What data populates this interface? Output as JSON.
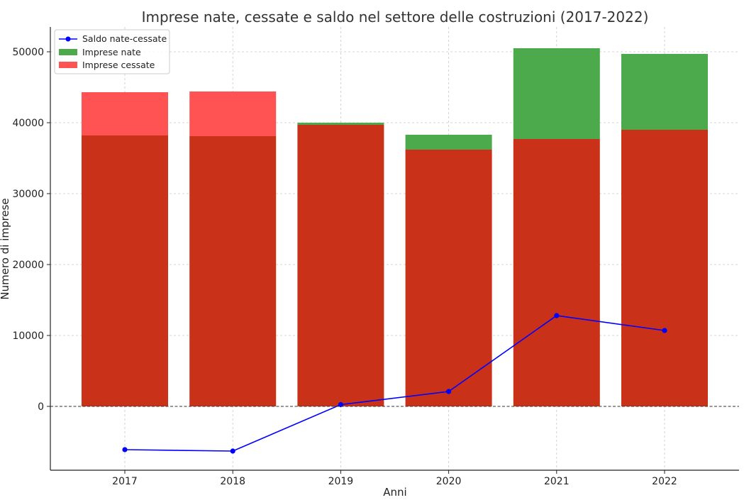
{
  "chart_data": {
    "type": "bar",
    "title": "Imprese nate, cessate e saldo nel settore delle costruzioni (2017-2022)",
    "xlabel": "Anni",
    "ylabel": "Numero di imprese",
    "categories": [
      "2017",
      "2018",
      "2019",
      "2020",
      "2021",
      "2022"
    ],
    "ylim": [
      -9000,
      53500
    ],
    "yticks": [
      0,
      10000,
      20000,
      30000,
      40000,
      50000
    ],
    "grid": true,
    "legend_position": "top-left",
    "zero_line": "dashed",
    "series": [
      {
        "name": "Saldo nate-cessate",
        "kind": "line",
        "color": "#0000ff",
        "values": [
          -6100,
          -6300,
          250,
          2100,
          12800,
          10700
        ]
      },
      {
        "name": "Imprese nate",
        "kind": "bar",
        "color": "#4caa4c",
        "values": [
          38200,
          38100,
          40000,
          38300,
          50500,
          49700
        ]
      },
      {
        "name": "Imprese cessate",
        "kind": "bar",
        "color": "#ff5252",
        "values": [
          44300,
          44400,
          39700,
          36200,
          37700,
          39000
        ]
      }
    ],
    "overlap_color": "#c93118"
  }
}
